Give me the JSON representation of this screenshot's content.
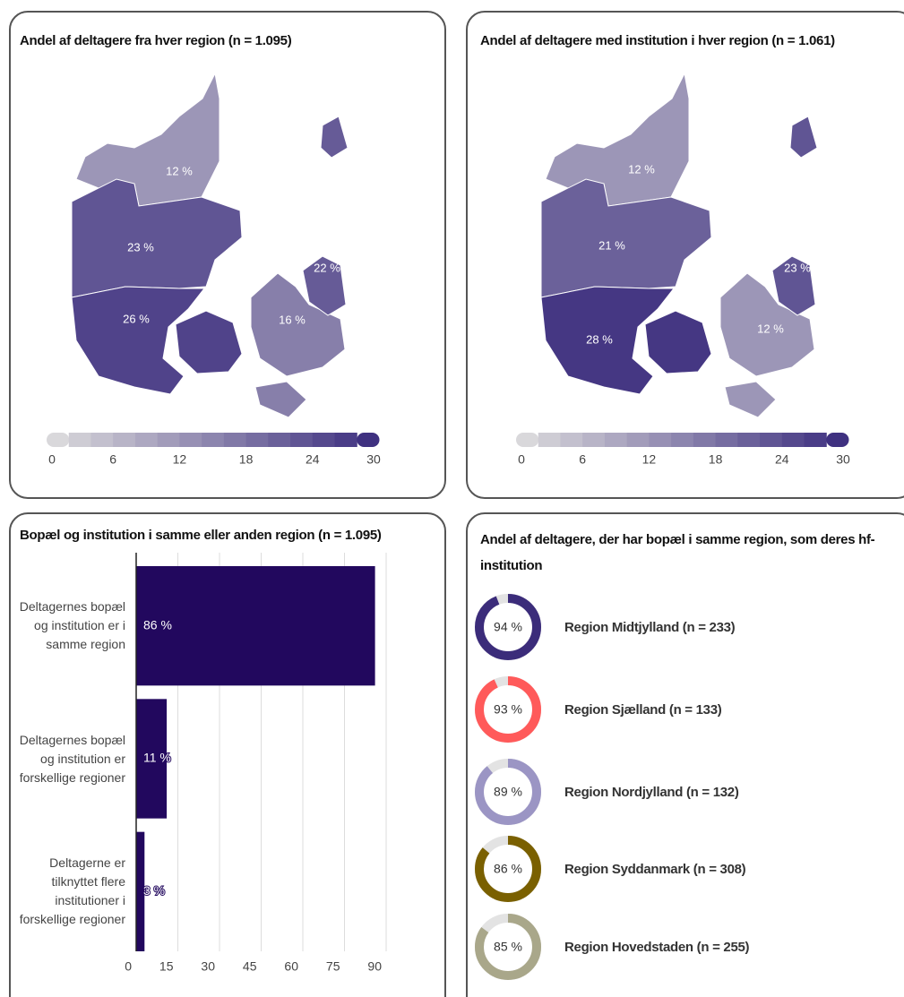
{
  "chart_data": [
    {
      "type": "map",
      "title": "Andel af deltagere fra hver region (n = 1.095)",
      "values": [
        12,
        23,
        26,
        16,
        22
      ],
      "value_labels": [
        "12 %",
        "23 %",
        "26 %",
        "16 %",
        "22 %"
      ],
      "colorscale": [
        "#dedede",
        "#3a2b7d"
      ],
      "clim": [
        0,
        30
      ],
      "cticks": [
        0,
        6,
        12,
        18,
        24,
        30
      ]
    },
    {
      "type": "map",
      "title": "Andel af deltagere med institution i hver region (n = 1.061)",
      "values": [
        12,
        21,
        28,
        12,
        23
      ],
      "value_labels": [
        "12 %",
        "21 %",
        "28 %",
        "12 %",
        "23 %"
      ],
      "colorscale": [
        "#dedede",
        "#3a2b7d"
      ],
      "clim": [
        0,
        30
      ],
      "cticks": [
        0,
        6,
        12,
        18,
        24,
        30
      ]
    },
    {
      "type": "bar",
      "orientation": "horizontal",
      "title": "Bopæl og institution i samme eller anden region (n = 1.095)",
      "categories": [
        "Deltagernes bopæl og institution er i samme region",
        "Deltagernes bopæl og institution er forskellige regioner",
        "Deltagerne er tilknyttet flere institutioner i forskellige regioner"
      ],
      "values": [
        86,
        11,
        3
      ],
      "value_labels": [
        "86 %",
        "11 %",
        "3 %"
      ],
      "color": "#22085e",
      "xlim": [
        0,
        90
      ],
      "xticks": [
        0,
        15,
        30,
        45,
        60,
        75,
        90
      ],
      "grid": true
    },
    {
      "type": "donut",
      "title": "Andel af deltagere, der har bopæl i samme region, som deres hf-institution",
      "categories": [
        "Region Midtjylland (n = 233)",
        "Region Sjælland (n = 133)",
        "Region Nordjylland (n = 132)",
        "Region Syddanmark (n = 308)",
        "Region Hovedstaden (n = 255)"
      ],
      "values": [
        94,
        93,
        89,
        86,
        85
      ],
      "value_labels": [
        "94 %",
        "93 %",
        "89 %",
        "86 %",
        "85 %"
      ],
      "colors": [
        "#3b2c7a",
        "#ff5a5a",
        "#9b95c4",
        "#7a6000",
        "#a9a78a"
      ]
    }
  ]
}
